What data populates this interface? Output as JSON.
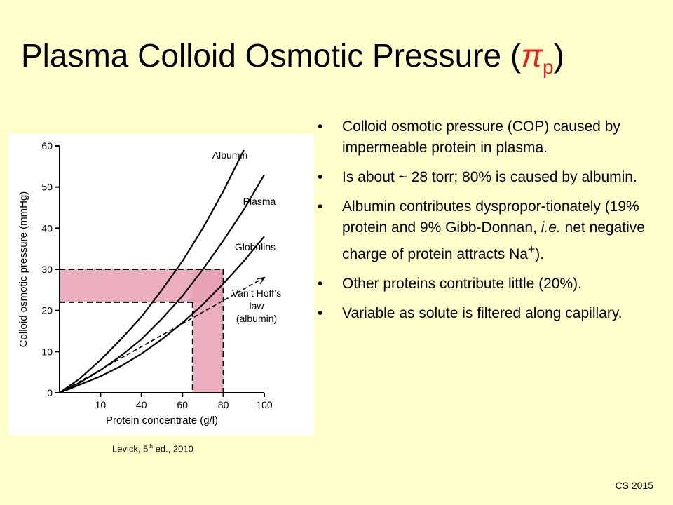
{
  "slide": {
    "title_main": "Plasma Colloid Osmotic Pressure (",
    "title_symbol": "π",
    "title_subscript": "p",
    "title_close": ")",
    "caption_pre": "Levick, 5",
    "caption_sup": "th",
    "caption_post": " ed., 2010",
    "footer": "CS 2015"
  },
  "bullets": [
    {
      "text": "Colloid osmotic pressure (COP) caused by impermeable protein in plasma."
    },
    {
      "text": "Is about ~ 28 torr; 80% is caused by albumin."
    },
    {
      "pre": "Albumin contributes dyspropor-tionately (19% protein and 9% Gibb-Donnan, ",
      "ital": "i.e.",
      "post": " net negative charge of protein attracts Na",
      "sup": "+",
      "end": ")."
    },
    {
      "text": "Other proteins contribute little (20%)."
    },
    {
      "text": "Variable as solute is filtered along capillary."
    }
  ],
  "chart_data": {
    "type": "line",
    "xlabel": "Protein concentrate (g/l)",
    "ylabel": "Colloid osmotic pressure (mmHg)",
    "x_tick_labels": [
      "10",
      "40",
      "60",
      "80",
      "100"
    ],
    "y_tick_labels": [
      "0",
      "10",
      "20",
      "30",
      "40",
      "50",
      "60"
    ],
    "xlim": [
      0,
      100
    ],
    "ylim": [
      0,
      60
    ],
    "grid": false,
    "series": [
      {
        "name": "Albumin",
        "style": "solid",
        "x": [
          0,
          10,
          20,
          30,
          40,
          50,
          60,
          70,
          80,
          90
        ],
        "y": [
          0,
          3.5,
          8,
          13,
          18.5,
          25,
          32,
          40,
          49,
          59
        ]
      },
      {
        "name": "Plasma",
        "style": "solid",
        "x": [
          0,
          10,
          20,
          30,
          40,
          50,
          60,
          70,
          80,
          90,
          100
        ],
        "y": [
          0,
          2.5,
          5.5,
          9,
          13,
          18,
          23.5,
          30,
          37,
          44.5,
          53
        ]
      },
      {
        "name": "Globulins",
        "style": "solid",
        "x": [
          0,
          10,
          20,
          30,
          40,
          50,
          60,
          70,
          80,
          90,
          100
        ],
        "y": [
          0,
          2,
          4,
          6.5,
          9.5,
          13,
          17,
          21.5,
          26.5,
          32,
          38
        ]
      },
      {
        "name": "Van’t Hoff’s law (albumin)",
        "label_lines": [
          "Van’t Hoff’s",
          "law",
          "(albumin)"
        ],
        "style": "dashed",
        "x": [
          0,
          100
        ],
        "y": [
          0,
          28
        ]
      }
    ],
    "bands": [
      {
        "axis": "y",
        "range": [
          22,
          30
        ],
        "x_extent": [
          0,
          80
        ],
        "color": "#e8a0b4"
      },
      {
        "axis": "x",
        "range": [
          65,
          80
        ],
        "y_extent": [
          0,
          30
        ],
        "color": "#e8a0b4"
      }
    ]
  }
}
